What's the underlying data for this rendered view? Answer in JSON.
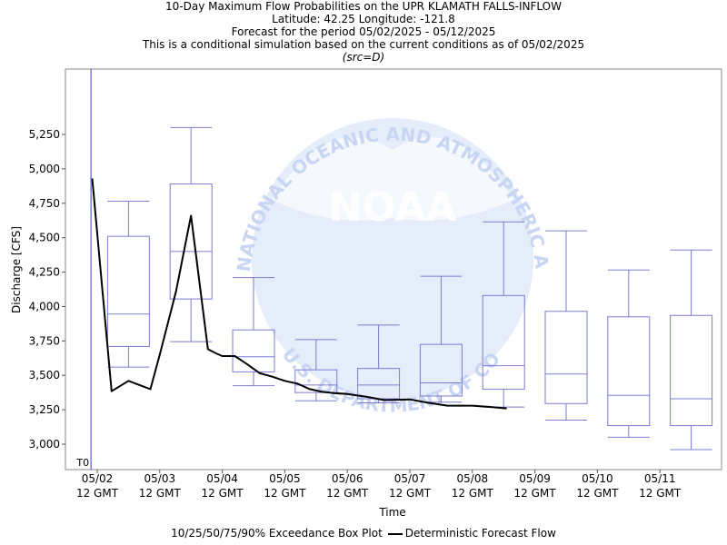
{
  "title_lines": [
    "10-Day Maximum Flow Probabilities on the UPR KLAMATH FALLS-INFLOW",
    "Latitude: 42.25 Longitude: -121.8",
    "Forecast for the period 05/02/2025 - 05/12/2025",
    "This is a conditional simulation based on the current conditions as of 05/02/2025"
  ],
  "source_note": "(src=D)",
  "watermark": {
    "logo_text": "NOAA",
    "ring_text": "NATIONAL OCEANIC AND ATMOSPHERIC ADMINISTRATION",
    "bottom_text": "U.S. DEPARTMENT OF COMMERCE"
  },
  "colors": {
    "box": "#7b7bd6",
    "line": "#000000",
    "t0_line": "#3a3acc",
    "watermark": "#c8d6f4"
  },
  "legend": {
    "box_label": "10/25/50/75/90% Exceedance Box Plot",
    "line_label": "Deterministic Forecast Flow"
  },
  "chart_data": {
    "type": "box",
    "ylabel": "Discharge [CFS]",
    "xlabel": "Time",
    "ylim": [
      2840,
      5420
    ],
    "xlim_days": [
      -0.5,
      10.4
    ],
    "yticks": [
      3000,
      3250,
      3500,
      3750,
      4000,
      4250,
      4500,
      4750,
      5000,
      5250
    ],
    "ytick_labels": [
      "3,000",
      "3,250",
      "3,500",
      "3,750",
      "4,000",
      "4,250",
      "4,500",
      "4,750",
      "5,000",
      "5,250"
    ],
    "xticks": [
      {
        "day": 0,
        "date": "05/02",
        "time": "12 GMT"
      },
      {
        "day": 1,
        "date": "05/03",
        "time": "12 GMT"
      },
      {
        "day": 2,
        "date": "05/04",
        "time": "12 GMT"
      },
      {
        "day": 3,
        "date": "05/05",
        "time": "12 GMT"
      },
      {
        "day": 4,
        "date": "05/06",
        "time": "12 GMT"
      },
      {
        "day": 5,
        "date": "05/07",
        "time": "12 GMT"
      },
      {
        "day": 6,
        "date": "05/08",
        "time": "12 GMT"
      },
      {
        "day": 7,
        "date": "05/09",
        "time": "12 GMT"
      },
      {
        "day": 8,
        "date": "05/10",
        "time": "12 GMT"
      },
      {
        "day": 9,
        "date": "05/11",
        "time": "12 GMT"
      }
    ],
    "t0_label": "T0",
    "t0_day": -0.1,
    "boxes": [
      {
        "day": 0.5,
        "p10": 3560,
        "p25": 3710,
        "p50": 3945,
        "p75": 4510,
        "p90": 4765
      },
      {
        "day": 1.5,
        "p10": 3745,
        "p25": 4055,
        "p50": 4400,
        "p75": 4890,
        "p90": 5300
      },
      {
        "day": 2.5,
        "p10": 3425,
        "p25": 3525,
        "p50": 3635,
        "p75": 3830,
        "p90": 4210
      },
      {
        "day": 3.5,
        "p10": 3315,
        "p25": 3375,
        "p50": 3430,
        "p75": 3540,
        "p90": 3760
      },
      {
        "day": 4.5,
        "p10": 3300,
        "p25": 3330,
        "p50": 3430,
        "p75": 3550,
        "p90": 3865
      },
      {
        "day": 5.5,
        "p10": 3305,
        "p25": 3350,
        "p50": 3445,
        "p75": 3725,
        "p90": 4220
      },
      {
        "day": 6.5,
        "p10": 3270,
        "p25": 3400,
        "p50": 3570,
        "p75": 4080,
        "p90": 4615
      },
      {
        "day": 7.5,
        "p10": 3175,
        "p25": 3295,
        "p50": 3510,
        "p75": 3965,
        "p90": 4550
      },
      {
        "day": 8.5,
        "p10": 3050,
        "p25": 3135,
        "p50": 3355,
        "p75": 3925,
        "p90": 4265
      },
      {
        "day": 9.5,
        "p10": 2960,
        "p25": 3135,
        "p50": 3330,
        "p75": 3935,
        "p90": 4410
      }
    ],
    "series": [
      {
        "name": "Deterministic Forecast Flow",
        "x": [
          -0.08,
          0.23,
          0.5,
          0.85,
          1.0,
          1.26,
          1.5,
          1.77,
          1.9,
          2.0,
          2.2,
          2.4,
          2.6,
          2.8,
          3.0,
          3.2,
          3.4,
          3.6,
          3.8,
          4.0,
          4.3,
          4.6,
          5.0,
          5.3,
          5.6,
          6.0,
          6.3,
          6.55
        ],
        "y": [
          4930,
          3385,
          3460,
          3400,
          3650,
          4110,
          4660,
          3690,
          3660,
          3640,
          3640,
          3580,
          3515,
          3490,
          3460,
          3440,
          3400,
          3380,
          3370,
          3365,
          3345,
          3320,
          3325,
          3300,
          3280,
          3280,
          3270,
          3260
        ]
      }
    ]
  }
}
